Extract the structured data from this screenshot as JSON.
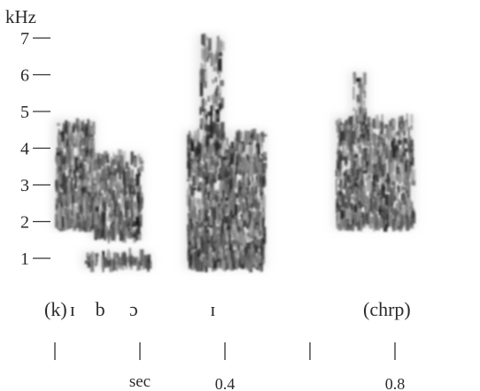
{
  "chart_data": {
    "type": "heatmap",
    "title": "",
    "ylabel": "kHz",
    "xlabel": "sec",
    "ylim": [
      0,
      7.4
    ],
    "xlim": [
      0,
      0.9
    ],
    "y_ticks": [
      {
        "value": 1,
        "label": "1"
      },
      {
        "value": 2,
        "label": "2"
      },
      {
        "value": 3,
        "label": "3"
      },
      {
        "value": 4,
        "label": "4"
      },
      {
        "value": 5,
        "label": "5"
      },
      {
        "value": 6,
        "label": "6"
      },
      {
        "value": 7,
        "label": "7"
      }
    ],
    "x_ticks": [
      {
        "value": 0.0,
        "label": ""
      },
      {
        "value": 0.2,
        "label": "sec"
      },
      {
        "value": 0.4,
        "label": "0.4"
      },
      {
        "value": 0.6,
        "label": ""
      },
      {
        "value": 0.8,
        "label": "0.8"
      }
    ],
    "segments": [
      {
        "label": "(k)",
        "time": 0.0
      },
      {
        "label": "ɪ",
        "time": 0.06
      },
      {
        "label": "b",
        "time": 0.12
      },
      {
        "label": "ɔ",
        "time": 0.2
      },
      {
        "label": "ɪ",
        "time": 0.39
      },
      {
        "label": "(chrp)",
        "time": 0.75
      }
    ],
    "energy_regions": [
      {
        "t": [
          0.0,
          0.09
        ],
        "f": [
          1.9,
          4.7
        ],
        "density": 0.9
      },
      {
        "t": [
          0.09,
          0.2
        ],
        "f": [
          1.6,
          3.8
        ],
        "density": 0.7
      },
      {
        "t": [
          0.07,
          0.22
        ],
        "f": [
          0.8,
          1.1
        ],
        "density": 0.85
      },
      {
        "t": [
          0.31,
          0.49
        ],
        "f": [
          0.8,
          4.4
        ],
        "density": 0.9
      },
      {
        "t": [
          0.34,
          0.39
        ],
        "f": [
          4.4,
          7.0
        ],
        "density": 0.4
      },
      {
        "t": [
          0.66,
          0.84
        ],
        "f": [
          1.9,
          4.8
        ],
        "density": 0.8
      },
      {
        "t": [
          0.7,
          0.73
        ],
        "f": [
          4.8,
          6.0
        ],
        "density": 0.35
      }
    ]
  }
}
